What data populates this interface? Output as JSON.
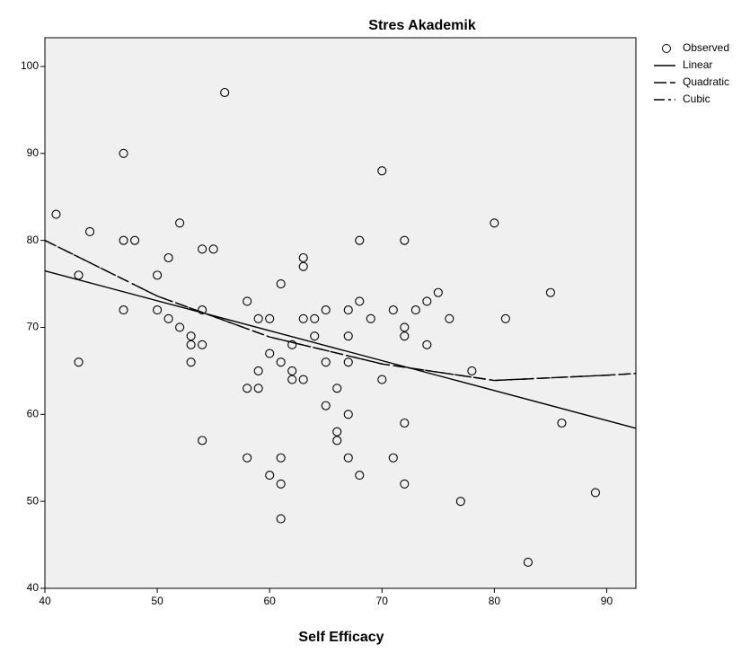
{
  "chart_data": {
    "type": "scatter",
    "title": "Stres Akademik",
    "x_label": "Self Efficacy",
    "xlim": [
      40,
      92.6
    ],
    "ylim": [
      40,
      103.3
    ],
    "xticks": [
      40,
      50,
      60,
      70,
      80,
      90
    ],
    "yticks": [
      40,
      50,
      60,
      70,
      80,
      90,
      100
    ],
    "legend": "right",
    "series": [
      {
        "name": "Observed",
        "mode": "markers",
        "color": "#000000",
        "x": [
          41,
          43,
          43,
          44,
          47,
          47,
          47,
          48,
          50,
          50,
          51,
          51,
          52,
          52,
          53,
          53,
          53,
          54,
          55,
          54,
          54,
          54,
          56,
          58,
          58,
          58,
          59,
          59,
          59,
          60,
          60,
          60,
          61,
          61,
          61,
          61,
          61,
          62,
          62,
          62,
          63,
          63,
          63,
          63,
          64,
          64,
          65,
          65,
          65,
          66,
          66,
          66,
          67,
          67,
          67,
          67,
          67,
          68,
          68,
          68,
          69,
          70,
          70,
          71,
          71,
          72,
          72,
          72,
          72,
          72,
          73,
          74,
          74,
          75,
          76,
          77,
          78,
          80,
          81,
          83,
          85,
          86,
          89
        ],
        "values": [
          83,
          76,
          66,
          81,
          90,
          80,
          72,
          80,
          76,
          72,
          78,
          71,
          82,
          70,
          69,
          68,
          66,
          79,
          79,
          72,
          68,
          57,
          97,
          73,
          63,
          55,
          71,
          65,
          63,
          71,
          67,
          53,
          75,
          66,
          55,
          52,
          48,
          68,
          65,
          64,
          78,
          77,
          71,
          64,
          71,
          69,
          72,
          66,
          61,
          63,
          58,
          57,
          72,
          69,
          66,
          60,
          55,
          80,
          73,
          53,
          71,
          88,
          64,
          72,
          55,
          80,
          70,
          69,
          59,
          52,
          72,
          73,
          68,
          74,
          71,
          50,
          65,
          82,
          71,
          43,
          74,
          59,
          51
        ]
      },
      {
        "name": "Linear",
        "mode": "line",
        "style": "solid",
        "color": "#000000",
        "x": [
          40,
          92.6
        ],
        "values": [
          76.5,
          58.4
        ]
      },
      {
        "name": "Quadratic",
        "mode": "line",
        "style": "longdash",
        "color": "#000000",
        "x": [
          40,
          50,
          60,
          70,
          80,
          90,
          92.6
        ],
        "values": [
          80,
          73.6,
          68.9,
          65.8,
          63.9,
          64.5,
          64.7
        ]
      },
      {
        "name": "Cubic",
        "mode": "line",
        "style": "dashdot",
        "color": "#000000",
        "x": [
          40,
          50,
          60,
          70,
          80,
          90,
          92.6
        ],
        "values": [
          80,
          73.6,
          68.9,
          65.8,
          63.9,
          64.5,
          64.7
        ]
      }
    ]
  }
}
